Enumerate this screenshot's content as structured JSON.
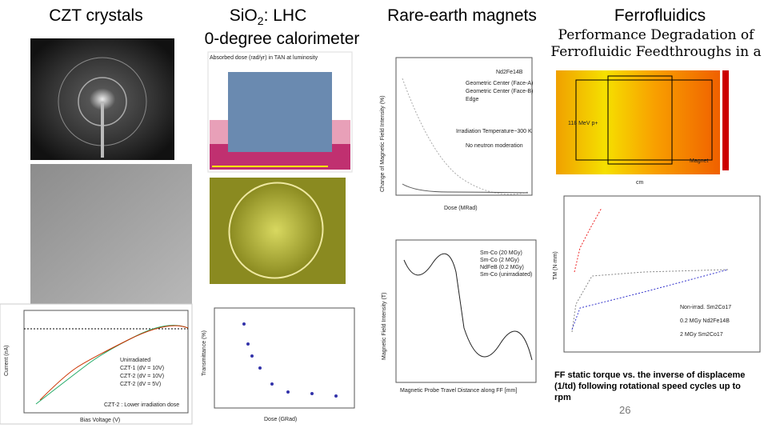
{
  "headings": {
    "czt": "CZT crystals",
    "sio2": {
      "main": "SiO",
      "sub": "2",
      "rest": ": LHC",
      "line2": "0-degree calorimeter"
    },
    "magnets": "Rare-earth magnets",
    "ferro": "Ferrofluidics",
    "ferro_sub": [
      "Performance Degradation of",
      "Ferrofluidic Feedthroughs in a"
    ]
  },
  "panels": {
    "czt_iv": {
      "legend": [
        "Unirradiated",
        "CZT-1 (dV = 10V)",
        "CZT-2 (dV = 10V)",
        "CZT-2 (dV = 5V)"
      ],
      "note": "CZT-2 : Lower irradiation dose",
      "xlabel": "Bias Voltage (V)",
      "ylabel": "Current (nA)"
    },
    "sio2_sim": {
      "title": "Absorbed dose (rad/yr) in TAN at luminosity"
    },
    "sio2_trans": {
      "xlabel": "Dose (GRad)",
      "ylabel": "Transmittance (%)"
    },
    "magnet_dose": {
      "label": "Nd2Fe14B",
      "legend": [
        "Geometric Center (Face-A)",
        "Geometric Center (Face-B)",
        "Edge"
      ],
      "note1": "Irradiation Temperature~300 K",
      "note2": "No neutron moderation",
      "xlabel": "Dose (MRad)",
      "ylabel": "Change of Magnetic Field Intensity (%)"
    },
    "magnet_probe": {
      "legend": [
        "Sm-Co (20 MGy)",
        "Sm-Co (2 MGy)",
        "NdFeB (0.2 MGy)",
        "Sm-Co (unirradiated)"
      ],
      "xlabel": "Magnetic Probe Travel Distance along FF [mm]",
      "ylabel": "Magnetic Field Intensity (T)"
    },
    "ferro_sim": {
      "beam": "118 MeV p+",
      "magnet": "Magnet",
      "xlabel": "cm"
    },
    "ferro_torque": {
      "legend": [
        "Non-irrad. Sm2Co17",
        "0.2 MGy Nd2Fe14B",
        "2 MGy Sm2Co17"
      ],
      "ylabel": "TM (N·mm)"
    }
  },
  "caption": [
    "FF static torque vs. the inverse of displaceme",
    "(1/td) following rotational speed cycles up to",
    "rpm"
  ],
  "page_number": "26"
}
